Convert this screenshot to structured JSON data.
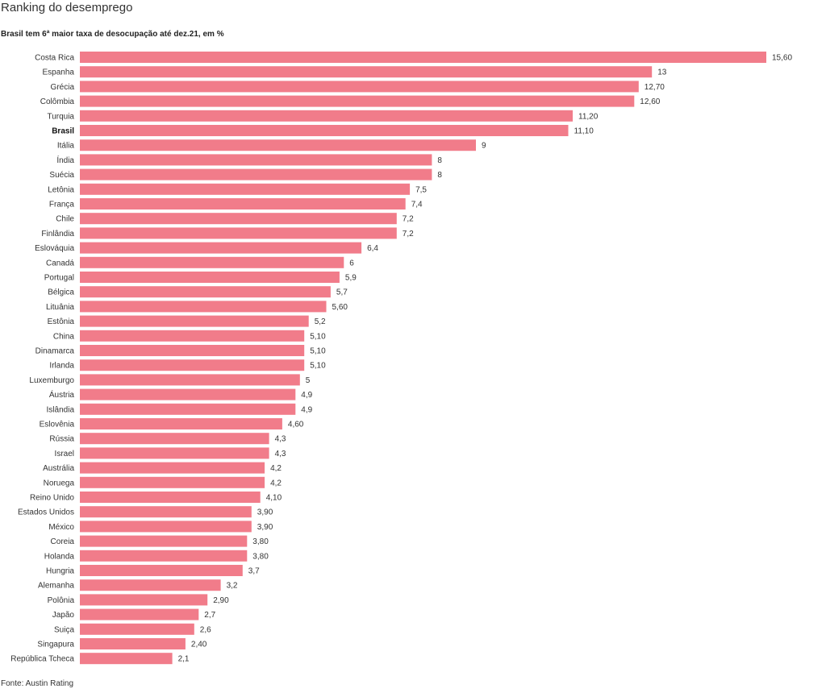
{
  "header": {
    "title": "Ranking do desemprego",
    "subtitle": "Brasil tem 6ª maior taxa de desocupação até dez.21, em %"
  },
  "footer": {
    "source": "Fonte: Austin Rating"
  },
  "colors": {
    "bar": "#F17C8A"
  },
  "chart_data": {
    "type": "bar",
    "orientation": "horizontal",
    "title": "Ranking do desemprego",
    "subtitle": "Brasil tem 6ª maior taxa de desocupação até dez.21, em %",
    "highlight": "Brasil",
    "grid": false,
    "xlim": [
      0,
      15.6
    ],
    "categories": [
      "Costa Rica",
      "Espanha",
      "Grécia",
      "Colômbia",
      "Turquia",
      "Brasil",
      "Itália",
      "Índia",
      "Suécia",
      "Letônia",
      "França",
      "Chile",
      "Finlândia",
      "Eslováquia",
      "Canadá",
      "Portugal",
      "Bélgica",
      "Lituânia",
      "Estônia",
      "China",
      "Dinamarca",
      "Irlanda",
      "Luxemburgo",
      "Áustria",
      "Islândia",
      "Eslovênia",
      "Rússia",
      "Israel",
      "Austrália",
      "Noruega",
      "Reino Unido",
      "Estados Unidos",
      "México",
      "Coreia",
      "Holanda",
      "Hungria",
      "Alemanha",
      "Polônia",
      "Japão",
      "Suiça",
      "Singapura",
      "República Tcheca"
    ],
    "values": [
      15.6,
      13,
      12.7,
      12.6,
      11.2,
      11.1,
      9,
      8,
      8,
      7.5,
      7.4,
      7.2,
      7.2,
      6.4,
      6,
      5.9,
      5.7,
      5.6,
      5.2,
      5.1,
      5.1,
      5.1,
      5,
      4.9,
      4.9,
      4.6,
      4.3,
      4.3,
      4.2,
      4.2,
      4.1,
      3.9,
      3.9,
      3.8,
      3.8,
      3.7,
      3.2,
      2.9,
      2.7,
      2.6,
      2.4,
      2.1
    ],
    "value_labels": [
      "15,60",
      "13",
      "12,70",
      "12,60",
      "11,20",
      "11,10",
      "9",
      "8",
      "8",
      "7,5",
      "7,4",
      "7,2",
      "7,2",
      "6,4",
      "6",
      "5,9",
      "5,7",
      "5,60",
      "5,2",
      "5,10",
      "5,10",
      "5,10",
      "5",
      "4,9",
      "4,9",
      "4,60",
      "4,3",
      "4,3",
      "4,2",
      "4,2",
      "4,10",
      "3,90",
      "3,90",
      "3,80",
      "3,80",
      "3,7",
      "3,2",
      "2,90",
      "2,7",
      "2,6",
      "2,40",
      "2,1"
    ]
  }
}
